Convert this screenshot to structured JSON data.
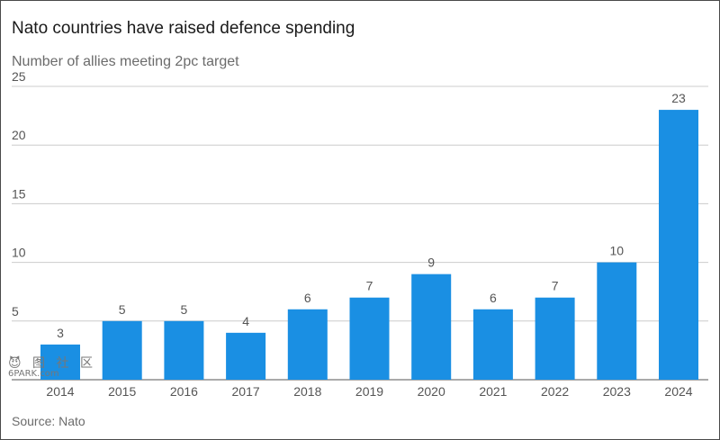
{
  "watermark": {
    "line1": "😈 图 社 区",
    "line2": "6PARK.com"
  },
  "chart_data": {
    "type": "bar",
    "title": "Nato countries have raised defence spending",
    "subtitle": "Number of allies meeting 2pc target",
    "categories": [
      "2014",
      "2015",
      "2016",
      "2017",
      "2018",
      "2019",
      "2020",
      "2021",
      "2022",
      "2023",
      "2024"
    ],
    "values": [
      3,
      5,
      5,
      4,
      6,
      7,
      9,
      6,
      7,
      10,
      23
    ],
    "ylim": [
      0,
      25
    ],
    "yticks": [
      0,
      5,
      10,
      15,
      20,
      25
    ],
    "ytick_labels": [
      "",
      "5",
      "10",
      "15",
      "20",
      "25"
    ],
    "grid": true,
    "bar_color": "#1a8fe3",
    "grid_color": "#cccccc",
    "source": "Source: Nato"
  }
}
